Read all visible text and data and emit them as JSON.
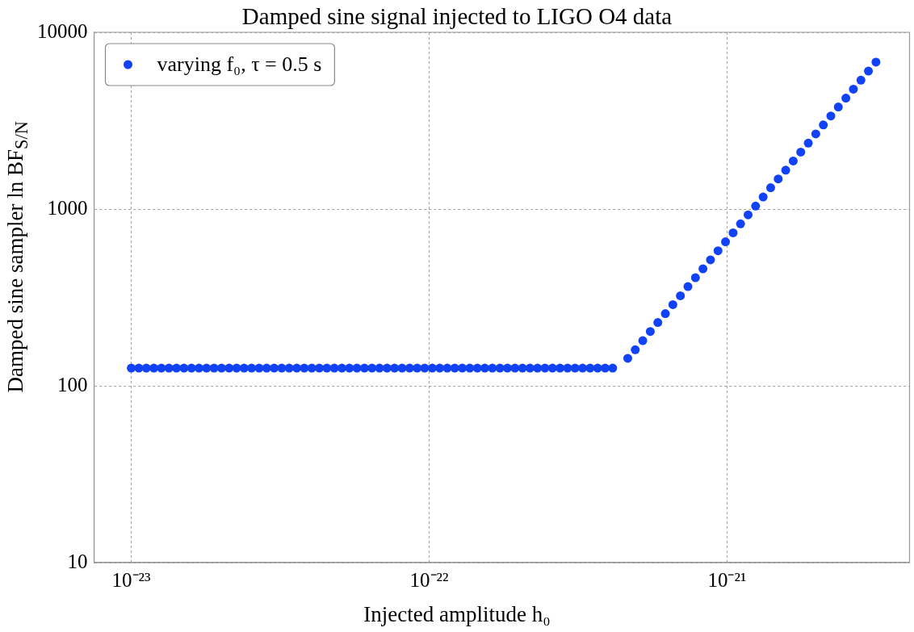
{
  "chart_data": {
    "type": "scatter",
    "title": "Damped sine signal injected to LIGO O4 data",
    "xlabel": "Injected amplitude h₀",
    "ylabel": "Damped sine sampler ln BF$_{S/N}$",
    "log": "xy",
    "grid": true,
    "legend": "top left",
    "marker": "circle",
    "xlim": [
      7.5e-24,
      4.1e-21
    ],
    "ylim": [
      10,
      10000
    ],
    "xticks": [
      {
        "value": 1e-23,
        "label": "10⁻²³"
      },
      {
        "value": 1e-22,
        "label": "10⁻²²"
      },
      {
        "value": 1e-21,
        "label": "10⁻²¹"
      }
    ],
    "yticks": [
      10,
      100,
      1000,
      10000
    ],
    "x": [
      1e-23,
      1.06e-23,
      1.123e-23,
      1.191e-23,
      1.262e-23,
      1.338e-23,
      1.418e-23,
      1.503e-23,
      1.593e-23,
      1.688e-23,
      1.789e-23,
      1.896e-23,
      2.009e-23,
      2.13e-23,
      2.257e-23,
      2.392e-23,
      2.535e-23,
      2.687e-23,
      2.848e-23,
      3.018e-23,
      3.199e-23,
      3.39e-23,
      3.594e-23,
      3.809e-23,
      4.037e-23,
      4.278e-23,
      4.535e-23,
      4.806e-23,
      5.094e-23,
      5.399e-23,
      5.722e-23,
      6.065e-23,
      6.428e-23,
      6.813e-23,
      7.221e-23,
      7.653e-23,
      8.111e-23,
      8.597e-23,
      9.112e-23,
      9.657e-23,
      1.024e-22,
      1.085e-22,
      1.15e-22,
      1.219e-22,
      1.292e-22,
      1.369e-22,
      1.451e-22,
      1.538e-22,
      1.63e-22,
      1.728e-22,
      1.831e-22,
      1.941e-22,
      2.057e-22,
      2.18e-22,
      2.31e-22,
      2.448e-22,
      2.595e-22,
      2.75e-22,
      2.915e-22,
      3.089e-22,
      3.274e-22,
      3.47e-22,
      3.678e-22,
      3.898e-22,
      4.132e-22,
      4.379e-22,
      4.642e-22,
      4.92e-22,
      5.214e-22,
      5.526e-22,
      5.857e-22,
      6.208e-22,
      6.579e-22,
      6.973e-22,
      7.391e-22,
      7.833e-22,
      8.302e-22,
      8.799e-22,
      9.326e-22,
      9.884e-22,
      1.048e-21,
      1.11e-21,
      1.177e-21,
      1.247e-21,
      1.322e-21,
      1.401e-21,
      1.485e-21,
      1.574e-21,
      1.668e-21,
      1.768e-21,
      1.874e-21,
      1.986e-21,
      2.105e-21,
      2.231e-21,
      2.364e-21,
      2.506e-21,
      2.656e-21,
      2.815e-21,
      2.983e-21,
      3.162e-21
    ],
    "series": [
      {
        "name": "varying f₀, τ = 0.5 s",
        "color": "#1142f5",
        "values": [
          126,
          126,
          126,
          126,
          126,
          126,
          126,
          126,
          126,
          126,
          126,
          126,
          126,
          126,
          126,
          126,
          126,
          126,
          126,
          126,
          126,
          126,
          126,
          126,
          126,
          126,
          126,
          126,
          126,
          126,
          126,
          126,
          126,
          126,
          126,
          126,
          126,
          126,
          126,
          126,
          126,
          126,
          126,
          126,
          126,
          126,
          126,
          126,
          126,
          126,
          126,
          126,
          126,
          126,
          126,
          126,
          126,
          126,
          126,
          126,
          126,
          126,
          126,
          126,
          126,
          null,
          143,
          160,
          180,
          203,
          228,
          256,
          288,
          323,
          364,
          409,
          459,
          516,
          581,
          653,
          734,
          825,
          927,
          1040,
          1170,
          1320,
          1480,
          1660,
          1870,
          2100,
          2360,
          2660,
          2990,
          3360,
          3780,
          4240,
          4770,
          5360,
          6030,
          6780
        ]
      }
    ]
  }
}
